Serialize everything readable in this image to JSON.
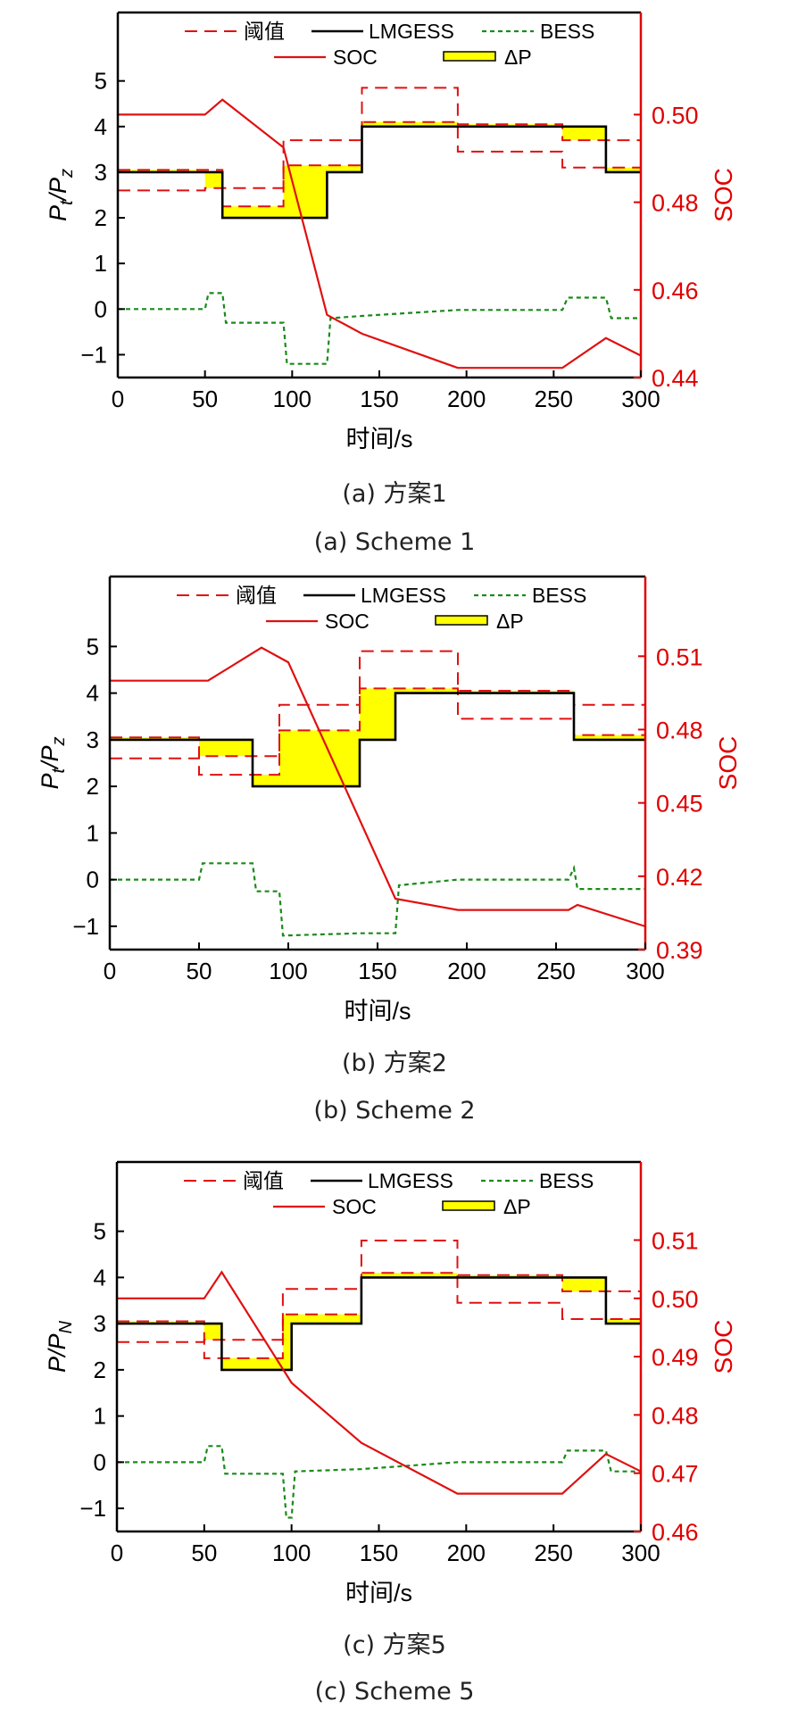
{
  "colors": {
    "lmgess": "#000000",
    "bess": "#1a8a1a",
    "threshold": "#e01010",
    "soc": "#e01010",
    "delta_p": "#ffff00",
    "right_axis": "#e00000"
  },
  "legend_labels": {
    "threshold": "阈值",
    "lmgess": "LMGESS",
    "bess": "BESS",
    "soc": "SOC",
    "delta_p": "ΔP"
  },
  "chart_data": [
    {
      "type": "line",
      "title": "",
      "caption_cn": "(a) 方案1",
      "caption_en": "(a) Scheme 1",
      "xlabel": "时间/s",
      "ylabel_main": "P",
      "ylabel_sub1": "t",
      "ylabel_sep": "/P",
      "ylabel_sub2": "z",
      "y2label": "SOC",
      "xlim": [
        0,
        300
      ],
      "ylim": [
        -1.5,
        6.5
      ],
      "y2lim": [
        0.44,
        0.5233
      ],
      "x_ticks": [
        0,
        50,
        100,
        150,
        200,
        250,
        300
      ],
      "x_tick_labels": [
        "0",
        "50",
        "100",
        "150",
        "200",
        "250",
        "300"
      ],
      "y_ticks": [
        -1,
        0,
        1,
        2,
        3,
        4,
        5
      ],
      "y_tick_labels": [
        "−1",
        "0",
        "1",
        "2",
        "3",
        "4",
        "5"
      ],
      "y2_ticks": [
        0.44,
        0.46,
        0.48,
        0.5
      ],
      "y2_tick_labels": [
        "0.44",
        "0.46",
        "0.48",
        "0.50"
      ],
      "legend_position": "top-center",
      "grid": false,
      "series": [
        {
          "key": "lmgess",
          "name": "LMGESS",
          "x": [
            0,
            60,
            60,
            120,
            120,
            140,
            140,
            280,
            280,
            300
          ],
          "y": [
            3,
            3,
            2,
            2,
            3,
            3,
            4,
            4,
            3,
            3
          ]
        },
        {
          "key": "bess",
          "name": "BESS",
          "x": [
            0,
            50,
            52,
            60,
            62,
            95,
            97,
            120,
            122,
            140,
            195,
            255,
            258,
            280,
            283,
            300
          ],
          "y": [
            0,
            0,
            0.35,
            0.35,
            -0.3,
            -0.3,
            -1.2,
            -1.2,
            -0.2,
            -0.15,
            -0.02,
            -0.02,
            0.25,
            0.25,
            -0.2,
            -0.2
          ]
        },
        {
          "key": "threshold_upper",
          "name": "阈值",
          "x": [
            0,
            60,
            60,
            95,
            95,
            140,
            140,
            195,
            195,
            255,
            255,
            300
          ],
          "y": [
            3.05,
            3.05,
            2.25,
            2.25,
            3.7,
            3.7,
            4.85,
            4.85,
            4.05,
            4.05,
            3.7,
            3.7
          ]
        },
        {
          "key": "threshold_lower",
          "name": "阈值",
          "x": [
            0,
            50,
            50,
            95,
            95,
            140,
            140,
            195,
            195,
            255,
            255,
            300
          ],
          "y": [
            2.6,
            2.6,
            2.65,
            2.65,
            3.15,
            3.15,
            4.1,
            4.1,
            3.45,
            3.45,
            3.1,
            3.1
          ]
        },
        {
          "key": "delta_p",
          "name": "ΔP",
          "x": [
            0,
            50,
            50,
            60,
            60,
            95,
            95,
            120,
            120,
            140,
            140,
            195,
            195,
            255,
            255,
            280,
            280,
            300
          ],
          "y": [
            3.05,
            3.05,
            2.65,
            2.65,
            2.25,
            2.25,
            3.15,
            3.15,
            3.15,
            3.15,
            4.1,
            4.1,
            4.05,
            4.05,
            3.7,
            3.7,
            3.1,
            3.1
          ]
        },
        {
          "key": "soc",
          "name": "SOC",
          "axis": "right",
          "x": [
            0,
            50,
            60,
            95,
            120,
            140,
            195,
            255,
            280,
            300
          ],
          "y": [
            0.5,
            0.5,
            0.5034,
            0.4925,
            0.4543,
            0.45,
            0.4422,
            0.4422,
            0.449,
            0.445
          ]
        }
      ]
    },
    {
      "type": "line",
      "title": "",
      "caption_cn": "(b) 方案2",
      "caption_en": "(b) Scheme 2",
      "xlabel": "时间/s",
      "ylabel_main": "P",
      "ylabel_sub1": "t",
      "ylabel_sep": "/P",
      "ylabel_sub2": "z",
      "y2label": "SOC",
      "xlim": [
        0,
        300
      ],
      "ylim": [
        -1.5,
        6.5
      ],
      "y2lim": [
        0.39,
        0.5426
      ],
      "x_ticks": [
        0,
        50,
        100,
        150,
        200,
        250,
        300
      ],
      "x_tick_labels": [
        "0",
        "50",
        "100",
        "150",
        "200",
        "250",
        "300"
      ],
      "y_ticks": [
        -1,
        0,
        1,
        2,
        3,
        4,
        5
      ],
      "y_tick_labels": [
        "−1",
        "0",
        "1",
        "2",
        "3",
        "4",
        "5"
      ],
      "y2_ticks": [
        0.39,
        0.42,
        0.45,
        0.48,
        0.51
      ],
      "y2_tick_labels": [
        "0.39",
        "0.42",
        "0.45",
        "0.48",
        "0.51"
      ],
      "legend_position": "top-center",
      "grid": false,
      "series": [
        {
          "key": "lmgess",
          "name": "LMGESS",
          "x": [
            0,
            80,
            80,
            140,
            140,
            160,
            160,
            260,
            260,
            300
          ],
          "y": [
            3,
            3,
            2,
            2,
            3,
            3,
            4,
            4,
            3,
            3
          ]
        },
        {
          "key": "bess",
          "name": "BESS",
          "x": [
            0,
            50,
            52,
            80,
            82,
            95,
            97,
            140,
            160,
            162,
            195,
            257,
            260,
            262,
            300
          ],
          "y": [
            0,
            0,
            0.35,
            0.35,
            -0.25,
            -0.25,
            -1.2,
            -1.15,
            -1.15,
            -0.12,
            0,
            0,
            0.25,
            -0.2,
            -0.2
          ]
        },
        {
          "key": "threshold_upper",
          "name": "阈值",
          "x": [
            0,
            50,
            50,
            95,
            95,
            140,
            140,
            195,
            195,
            260,
            260,
            300
          ],
          "y": [
            3.05,
            3.05,
            2.25,
            2.25,
            3.75,
            3.75,
            4.9,
            4.9,
            4.05,
            4.05,
            3.75,
            3.75
          ]
        },
        {
          "key": "threshold_lower",
          "name": "阈值",
          "x": [
            0,
            50,
            50,
            95,
            95,
            140,
            140,
            195,
            195,
            260,
            260,
            300
          ],
          "y": [
            2.6,
            2.6,
            2.65,
            2.65,
            3.2,
            3.2,
            4.1,
            4.1,
            3.45,
            3.45,
            3.1,
            3.1
          ]
        },
        {
          "key": "delta_p",
          "name": "ΔP",
          "x": [
            0,
            50,
            50,
            80,
            80,
            95,
            95,
            140,
            140,
            160,
            160,
            195,
            195,
            260,
            260,
            300
          ],
          "y": [
            3.05,
            3.05,
            2.65,
            2.65,
            2.25,
            2.25,
            3.2,
            3.2,
            4.1,
            4.1,
            4.1,
            4.1,
            4.05,
            4.05,
            3.1,
            3.1
          ]
        },
        {
          "key": "soc",
          "name": "SOC",
          "axis": "right",
          "x": [
            0,
            55,
            85,
            100,
            160,
            195,
            257,
            262,
            300
          ],
          "y": [
            0.5,
            0.5,
            0.5135,
            0.5075,
            0.4108,
            0.4062,
            0.4062,
            0.4083,
            0.3995
          ]
        }
      ]
    },
    {
      "type": "line",
      "title": "",
      "caption_cn": "(c) 方案5",
      "caption_en": "(c) Scheme 5",
      "xlabel": "时间/s",
      "ylabel_main": "P/P",
      "ylabel_sub1": "",
      "ylabel_sep": "",
      "ylabel_sub2": "N",
      "y2label": "SOC",
      "xlim": [
        0,
        300
      ],
      "ylim": [
        -1.5,
        6.5
      ],
      "y2lim": [
        0.46,
        0.5234
      ],
      "x_ticks": [
        0,
        50,
        100,
        150,
        200,
        250,
        300
      ],
      "x_tick_labels": [
        "0",
        "50",
        "100",
        "150",
        "200",
        "250",
        "300"
      ],
      "y_ticks": [
        -1,
        0,
        1,
        2,
        3,
        4,
        5
      ],
      "y_tick_labels": [
        "−1",
        "0",
        "1",
        "2",
        "3",
        "4",
        "5"
      ],
      "y2_ticks": [
        0.46,
        0.47,
        0.48,
        0.49,
        0.5,
        0.51
      ],
      "y2_tick_labels": [
        "0.46",
        "0.47",
        "0.48",
        "0.49",
        "0.50",
        "0.51"
      ],
      "legend_position": "top-center",
      "grid": false,
      "series": [
        {
          "key": "lmgess",
          "name": "LMGESS",
          "x": [
            0,
            60,
            60,
            100,
            100,
            140,
            140,
            280,
            280,
            300
          ],
          "y": [
            3,
            3,
            2,
            2,
            3,
            3,
            4,
            4,
            3,
            3
          ]
        },
        {
          "key": "bess",
          "name": "BESS",
          "x": [
            0,
            50,
            52,
            60,
            62,
            95,
            97,
            100,
            102,
            140,
            195,
            255,
            258,
            280,
            283,
            300
          ],
          "y": [
            0,
            0,
            0.35,
            0.35,
            -0.25,
            -0.25,
            -1.2,
            -1.2,
            -0.2,
            -0.15,
            0,
            0,
            0.25,
            0.25,
            -0.2,
            -0.2
          ]
        },
        {
          "key": "threshold_upper",
          "name": "阈值",
          "x": [
            0,
            50,
            50,
            95,
            95,
            140,
            140,
            195,
            195,
            255,
            255,
            300
          ],
          "y": [
            3.05,
            3.05,
            2.25,
            2.25,
            3.75,
            3.75,
            4.8,
            4.8,
            4.05,
            4.05,
            3.7,
            3.7
          ]
        },
        {
          "key": "threshold_lower",
          "name": "阈值",
          "x": [
            0,
            50,
            50,
            95,
            95,
            140,
            140,
            195,
            195,
            255,
            255,
            300
          ],
          "y": [
            2.6,
            2.6,
            2.65,
            2.65,
            3.2,
            3.2,
            4.1,
            4.1,
            3.45,
            3.45,
            3.1,
            3.1
          ]
        },
        {
          "key": "delta_p",
          "name": "ΔP",
          "x": [
            0,
            50,
            50,
            60,
            60,
            95,
            95,
            100,
            100,
            140,
            140,
            195,
            195,
            255,
            255,
            280,
            280,
            300
          ],
          "y": [
            3.05,
            3.05,
            2.65,
            2.65,
            2.25,
            2.25,
            3.2,
            3.2,
            3.2,
            3.2,
            4.1,
            4.1,
            4.05,
            4.05,
            3.7,
            3.7,
            3.1,
            3.1
          ]
        },
        {
          "key": "soc",
          "name": "SOC",
          "axis": "right",
          "x": [
            0,
            50,
            60,
            100,
            140,
            195,
            255,
            280,
            300
          ],
          "y": [
            0.5,
            0.5,
            0.5045,
            0.4855,
            0.4752,
            0.4665,
            0.4665,
            0.4733,
            0.4703
          ]
        }
      ]
    }
  ]
}
